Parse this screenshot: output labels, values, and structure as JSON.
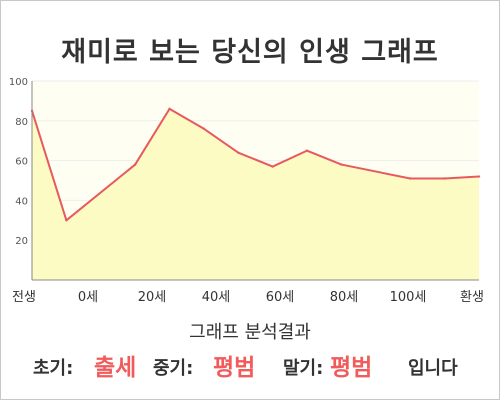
{
  "title": "재미로 보는 당신의 인생 그래프",
  "analysis_title": "그래프 분석결과",
  "verdict": {
    "early_label": "초기:",
    "early_value": "출세",
    "mid_label": "중기:",
    "mid_value": "평범",
    "late_label": "말기:",
    "late_value": "평범",
    "ending": "입니다"
  },
  "colors": {
    "line": "#e8595f",
    "fill": "#fdfbc4",
    "accent": "#f15b5b"
  },
  "chart_data": {
    "type": "area",
    "x_ticks": [
      "전생",
      "0세",
      "20세",
      "40세",
      "60세",
      "80세",
      "100세",
      "환생"
    ],
    "y_ticks": [
      20,
      40,
      60,
      80,
      100
    ],
    "ylim": [
      0,
      100
    ],
    "x": [
      -10,
      0,
      20,
      30,
      40,
      50,
      60,
      70,
      80,
      100,
      110,
      120
    ],
    "values": [
      85,
      30,
      58,
      86,
      76,
      64,
      57,
      65,
      58,
      51,
      51,
      52
    ],
    "grid": true
  }
}
